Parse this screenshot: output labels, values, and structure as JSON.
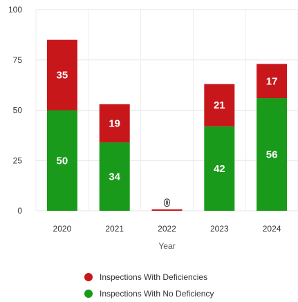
{
  "chart_data": {
    "type": "bar",
    "stacked": true,
    "categories": [
      "2020",
      "2021",
      "2022",
      "2023",
      "2024"
    ],
    "series": [
      {
        "name": "Inspections With No Deficiency",
        "color": "#1a9a1a",
        "values": [
          50,
          34,
          0,
          42,
          56
        ]
      },
      {
        "name": "Inspections With Deficiencies",
        "color": "#c8171b",
        "values": [
          35,
          19,
          0,
          21,
          17
        ]
      }
    ],
    "xlabel": "Year",
    "ylabel": "",
    "ylim": [
      0,
      100
    ],
    "yticks": [
      0,
      25,
      50,
      75,
      100
    ],
    "grid": true,
    "legend_position": "bottom",
    "legend_order": [
      "Inspections With Deficiencies",
      "Inspections With No Deficiency"
    ],
    "total_labels": [
      "",
      "",
      "0",
      "",
      ""
    ]
  }
}
